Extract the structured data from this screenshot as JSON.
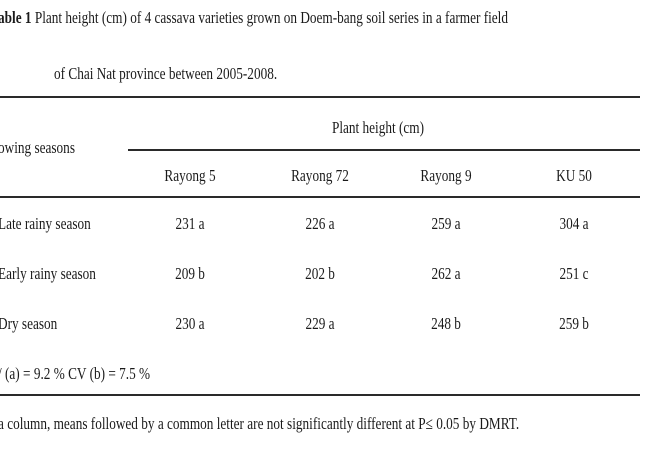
{
  "caption": {
    "label": "able 1",
    "line1_text": " Plant height (cm) of 4 cassava varieties grown on Doem-bang soil series in a farmer field",
    "line2": "of Chai Nat province between 2005-2008."
  },
  "table": {
    "row_header": "owing seasons",
    "group_header": "Plant height (cm)",
    "columns": [
      "Rayong 5",
      "Rayong 72",
      "Rayong 9",
      "KU 50"
    ],
    "rows": [
      {
        "season": "Late rainy season",
        "values": [
          "231 a",
          "226 a",
          "259 a",
          "304 a"
        ]
      },
      {
        "season": "Early rainy season",
        "values": [
          "209 b",
          "202 b",
          "262 a",
          "251 c"
        ]
      },
      {
        "season": "Dry season",
        "values": [
          "230 a",
          "229 a",
          "248 b",
          "259 b"
        ]
      }
    ],
    "cv": "/ (a) = 9.2 % CV (b) = 7.5 %"
  },
  "footnote": "a column, means followed by a common letter are not significantly different at P≤ 0.05 by DMRT."
}
